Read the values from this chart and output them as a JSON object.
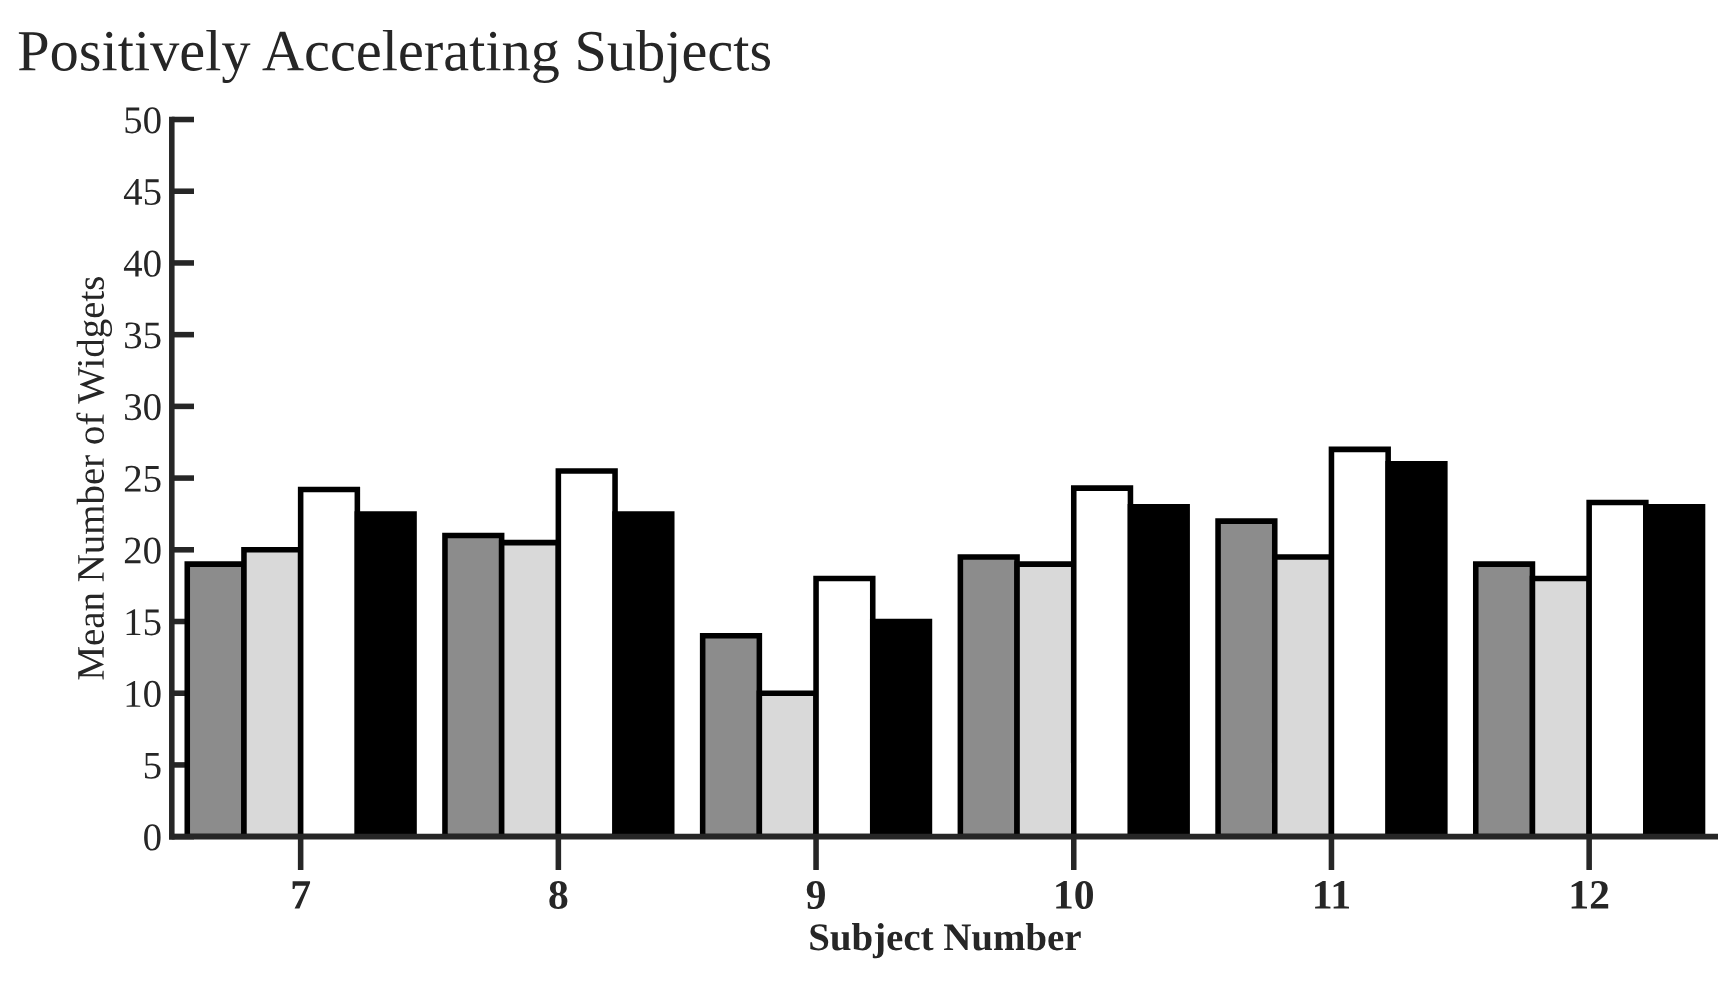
{
  "chart_data": {
    "type": "bar",
    "title": "Positively Accelerating Subjects",
    "xlabel": "Subject Number",
    "ylabel": "Mean Number of Widgets",
    "categories": [
      "7",
      "8",
      "9",
      "10",
      "11",
      "12"
    ],
    "series": [
      {
        "color": "#8c8c8c",
        "values": [
          19,
          21,
          14,
          19.5,
          22,
          19
        ]
      },
      {
        "color": "#d9d9d9",
        "values": [
          20,
          20.5,
          10,
          19,
          19.5,
          18
        ]
      },
      {
        "color": "#ffffff",
        "values": [
          24.2,
          25.5,
          18,
          24.3,
          27,
          23.3
        ]
      },
      {
        "color": "#000000",
        "values": [
          22.5,
          22.5,
          15,
          23,
          26,
          23
        ]
      }
    ],
    "ylim": [
      0,
      50
    ],
    "yticks": [
      0,
      5,
      10,
      15,
      20,
      25,
      30,
      35,
      40,
      45,
      50
    ],
    "grid": false,
    "legend": false
  }
}
